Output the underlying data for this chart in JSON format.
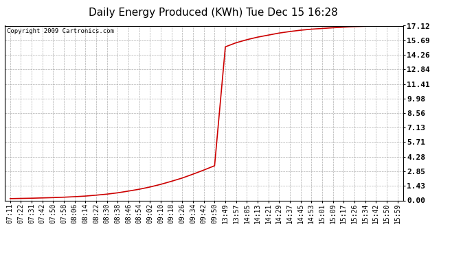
{
  "title": "Daily Energy Produced (KWh) Tue Dec 15 16:28",
  "copyright_text": "Copyright 2009 Cartronics.com",
  "line_color": "#cc0000",
  "background_color": "#ffffff",
  "plot_bg_color": "#ffffff",
  "grid_color": "#999999",
  "ylim": [
    0.0,
    17.12
  ],
  "yticks": [
    0.0,
    1.43,
    2.85,
    4.28,
    5.71,
    7.13,
    8.56,
    9.98,
    11.41,
    12.84,
    14.26,
    15.69,
    17.12
  ],
  "x_labels": [
    "07:11",
    "07:22",
    "07:31",
    "07:42",
    "07:50",
    "07:58",
    "08:06",
    "08:14",
    "08:22",
    "08:30",
    "08:38",
    "08:46",
    "08:54",
    "09:02",
    "09:10",
    "09:18",
    "09:26",
    "09:34",
    "09:42",
    "09:50",
    "13:49",
    "13:57",
    "14:05",
    "14:13",
    "14:21",
    "14:29",
    "14:37",
    "14:45",
    "14:53",
    "15:01",
    "15:09",
    "15:17",
    "15:26",
    "15:34",
    "15:42",
    "15:50",
    "15:59"
  ],
  "data_x_indices": [
    0,
    1,
    2,
    3,
    4,
    5,
    6,
    7,
    8,
    9,
    10,
    11,
    12,
    13,
    14,
    15,
    16,
    17,
    18,
    19,
    20,
    21,
    22,
    23,
    24,
    25,
    26,
    27,
    28,
    29,
    30,
    31,
    32,
    33,
    34,
    35,
    36
  ],
  "data_y_values": [
    0.18,
    0.2,
    0.22,
    0.25,
    0.28,
    0.32,
    0.37,
    0.43,
    0.52,
    0.62,
    0.75,
    0.92,
    1.1,
    1.32,
    1.58,
    1.88,
    2.2,
    2.58,
    2.98,
    3.4,
    15.05,
    15.45,
    15.75,
    16.0,
    16.2,
    16.4,
    16.55,
    16.68,
    16.78,
    16.85,
    16.92,
    16.98,
    17.03,
    17.07,
    17.1,
    17.12,
    17.12
  ],
  "title_fontsize": 11,
  "tick_fontsize": 7,
  "ytick_fontsize": 8,
  "copyright_fontsize": 6.5,
  "linewidth": 1.2
}
